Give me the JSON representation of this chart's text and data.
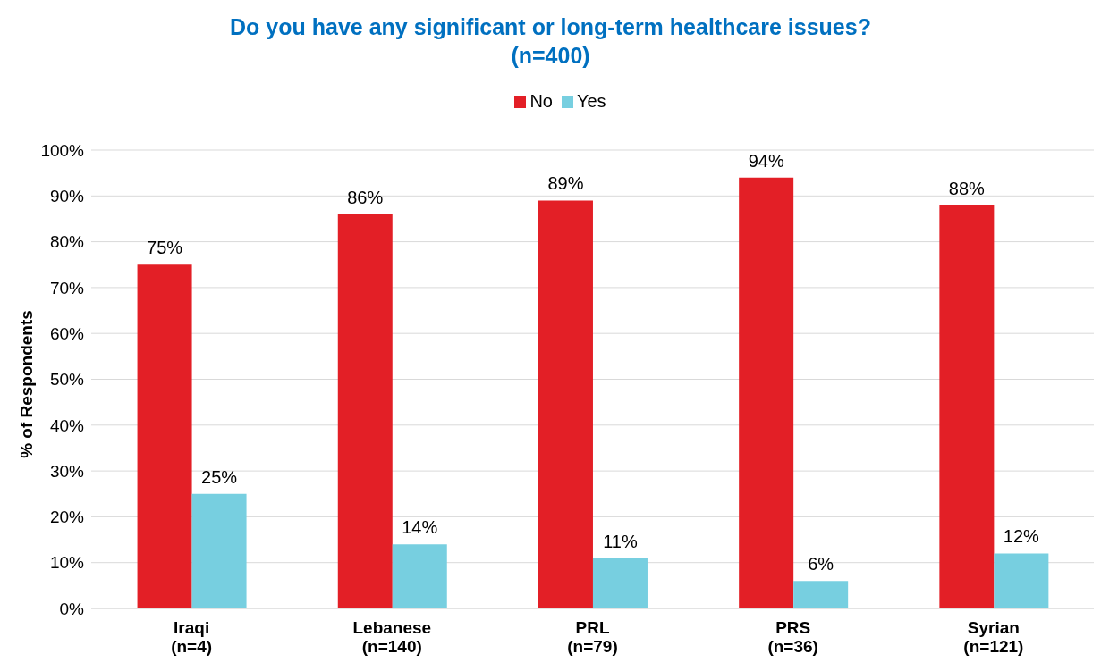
{
  "chart_data": {
    "type": "bar",
    "title": "Do you have any significant or long-term healthcare issues?\n(n=400)",
    "ylabel": "% of Respondents",
    "categories": [
      "Iraqi\n(n=4)",
      "Lebanese\n(n=140)",
      "PRL\n(n=79)",
      "PRS\n(n=36)",
      "Syrian\n(n=121)"
    ],
    "series": [
      {
        "name": "No",
        "color": "#e31f26",
        "values": [
          75,
          86,
          89,
          94,
          88
        ],
        "value_labels": [
          "75%",
          "86%",
          "89%",
          "94%",
          "88%"
        ]
      },
      {
        "name": "Yes",
        "color": "#77cfe0",
        "values": [
          25,
          14,
          11,
          6,
          12
        ],
        "value_labels": [
          "25%",
          "14%",
          "11%",
          "6%",
          "12%"
        ]
      }
    ],
    "ylim": [
      0,
      100
    ],
    "yticks": [
      {
        "value": 0,
        "label": "0%"
      },
      {
        "value": 10,
        "label": "10%"
      },
      {
        "value": 20,
        "label": "20%"
      },
      {
        "value": 30,
        "label": "30%"
      },
      {
        "value": 40,
        "label": "40%"
      },
      {
        "value": 50,
        "label": "50%"
      },
      {
        "value": 60,
        "label": "60%"
      },
      {
        "value": 70,
        "label": "70%"
      },
      {
        "value": 80,
        "label": "80%"
      },
      {
        "value": 90,
        "label": "90%"
      },
      {
        "value": 100,
        "label": "100%"
      }
    ],
    "grid": "y",
    "legend": "top"
  }
}
